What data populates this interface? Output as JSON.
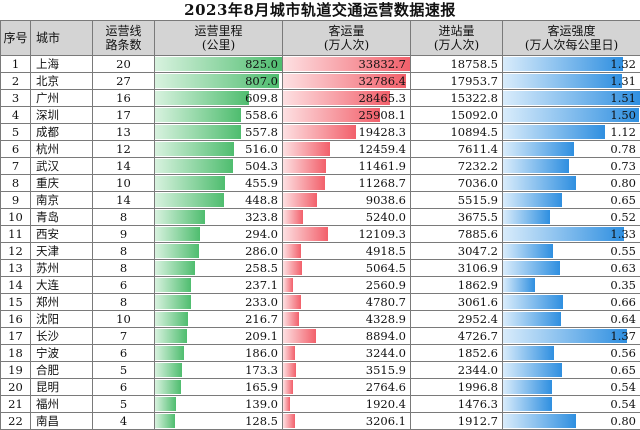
{
  "title": "2023年8月城市轨道交通运营数据速报",
  "headers": {
    "seq": "序号",
    "city": "城市",
    "lines": "运营线\n路条数",
    "mileage": "运营里程\n(公里)",
    "ridership": "客运量\n(万人次)",
    "entries": "进站量\n(万人次)",
    "intensity": "客运强度\n(万人次每公里日)"
  },
  "rows": [
    {
      "seq": "1",
      "city": "上海",
      "lines": "20",
      "mileage": "825.0",
      "ridership": "33832.7",
      "entries": "18758.5",
      "intensity": "1.32"
    },
    {
      "seq": "2",
      "city": "北京",
      "lines": "27",
      "mileage": "807.0",
      "ridership": "32786.4",
      "entries": "17953.7",
      "intensity": "1.31"
    },
    {
      "seq": "3",
      "city": "广州",
      "lines": "16",
      "mileage": "609.8",
      "ridership": "28465.3",
      "entries": "15322.8",
      "intensity": "1.51"
    },
    {
      "seq": "4",
      "city": "深圳",
      "lines": "17",
      "mileage": "558.6",
      "ridership": "25908.1",
      "entries": "15092.0",
      "intensity": "1.50"
    },
    {
      "seq": "5",
      "city": "成都",
      "lines": "13",
      "mileage": "557.8",
      "ridership": "19428.3",
      "entries": "10894.5",
      "intensity": "1.12"
    },
    {
      "seq": "6",
      "city": "杭州",
      "lines": "12",
      "mileage": "516.0",
      "ridership": "12459.4",
      "entries": "7611.4",
      "intensity": "0.78"
    },
    {
      "seq": "7",
      "city": "武汉",
      "lines": "14",
      "mileage": "504.3",
      "ridership": "11461.9",
      "entries": "7232.2",
      "intensity": "0.73"
    },
    {
      "seq": "8",
      "city": "重庆",
      "lines": "10",
      "mileage": "455.9",
      "ridership": "11268.7",
      "entries": "7036.0",
      "intensity": "0.80"
    },
    {
      "seq": "9",
      "city": "南京",
      "lines": "14",
      "mileage": "448.8",
      "ridership": "9038.6",
      "entries": "5515.9",
      "intensity": "0.65"
    },
    {
      "seq": "10",
      "city": "青岛",
      "lines": "8",
      "mileage": "323.8",
      "ridership": "5240.0",
      "entries": "3675.5",
      "intensity": "0.52"
    },
    {
      "seq": "11",
      "city": "西安",
      "lines": "9",
      "mileage": "294.0",
      "ridership": "12109.3",
      "entries": "7885.6",
      "intensity": "1.33"
    },
    {
      "seq": "12",
      "city": "天津",
      "lines": "8",
      "mileage": "286.0",
      "ridership": "4918.5",
      "entries": "3047.2",
      "intensity": "0.55"
    },
    {
      "seq": "13",
      "city": "苏州",
      "lines": "8",
      "mileage": "258.5",
      "ridership": "5064.5",
      "entries": "3106.9",
      "intensity": "0.63"
    },
    {
      "seq": "14",
      "city": "大连",
      "lines": "6",
      "mileage": "237.1",
      "ridership": "2560.9",
      "entries": "1862.9",
      "intensity": "0.35"
    },
    {
      "seq": "15",
      "city": "郑州",
      "lines": "8",
      "mileage": "233.0",
      "ridership": "4780.7",
      "entries": "3061.6",
      "intensity": "0.66"
    },
    {
      "seq": "16",
      "city": "沈阳",
      "lines": "10",
      "mileage": "216.7",
      "ridership": "4328.9",
      "entries": "2952.4",
      "intensity": "0.64"
    },
    {
      "seq": "17",
      "city": "长沙",
      "lines": "7",
      "mileage": "209.1",
      "ridership": "8894.0",
      "entries": "4726.7",
      "intensity": "1.37"
    },
    {
      "seq": "18",
      "city": "宁波",
      "lines": "6",
      "mileage": "186.0",
      "ridership": "3244.0",
      "entries": "1852.6",
      "intensity": "0.56"
    },
    {
      "seq": "19",
      "city": "合肥",
      "lines": "5",
      "mileage": "173.3",
      "ridership": "3515.9",
      "entries": "2344.0",
      "intensity": "0.65"
    },
    {
      "seq": "20",
      "city": "昆明",
      "lines": "6",
      "mileage": "165.9",
      "ridership": "2764.6",
      "entries": "1996.8",
      "intensity": "0.54"
    },
    {
      "seq": "21",
      "city": "福州",
      "lines": "5",
      "mileage": "139.0",
      "ridership": "1920.4",
      "entries": "1476.3",
      "intensity": "0.54"
    },
    {
      "seq": "22",
      "city": "南昌",
      "lines": "4",
      "mileage": "128.5",
      "ridership": "3206.1",
      "entries": "1912.7",
      "intensity": "0.80"
    }
  ],
  "bar_max": {
    "mileage": 825.0,
    "ridership": 33832.7,
    "intensity": 1.51
  },
  "colors": {
    "mileage": "#4fbd6f",
    "ridership": "#f2606b",
    "intensity": "#2f8fe0",
    "header_bg": "#d4d4d4"
  }
}
